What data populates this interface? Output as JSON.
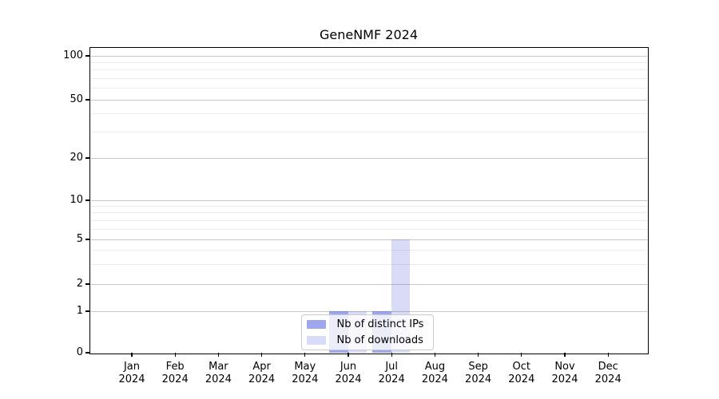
{
  "title": "GeneNMF 2024",
  "chart_data": {
    "type": "bar",
    "x": {
      "months": [
        "Jan",
        "Feb",
        "Mar",
        "Apr",
        "May",
        "Jun",
        "Jul",
        "Aug",
        "Sep",
        "Oct",
        "Nov",
        "Dec"
      ],
      "year": "2024"
    },
    "series": [
      {
        "name": "Nb of distinct IPs",
        "color": "rgba(80,95,220,0.55)",
        "color_hex": "#9fa7ec",
        "values": [
          0,
          0,
          0,
          0,
          0,
          1,
          1,
          0,
          0,
          0,
          0,
          0
        ]
      },
      {
        "name": "Nb of downloads",
        "color": "rgba(80,95,220,0.22)",
        "color_hex": "#d8dbf7",
        "values": [
          0,
          0,
          0,
          0,
          0,
          1,
          5,
          0,
          0,
          0,
          0,
          0
        ]
      }
    ],
    "y_axis": {
      "scale": "asinh",
      "ticks": [
        0,
        1,
        2,
        5,
        10,
        20,
        50,
        100
      ],
      "minor_ticks": [
        3,
        4,
        6,
        7,
        8,
        9,
        30,
        40,
        60,
        70,
        80,
        90
      ],
      "ylim": [
        0,
        115
      ]
    },
    "legend": {
      "position": "lower center"
    },
    "grid": "both",
    "colors": {
      "grid_major": "#c6c6c6",
      "grid_minor": "#ebebeb",
      "axis": "#000000"
    }
  }
}
